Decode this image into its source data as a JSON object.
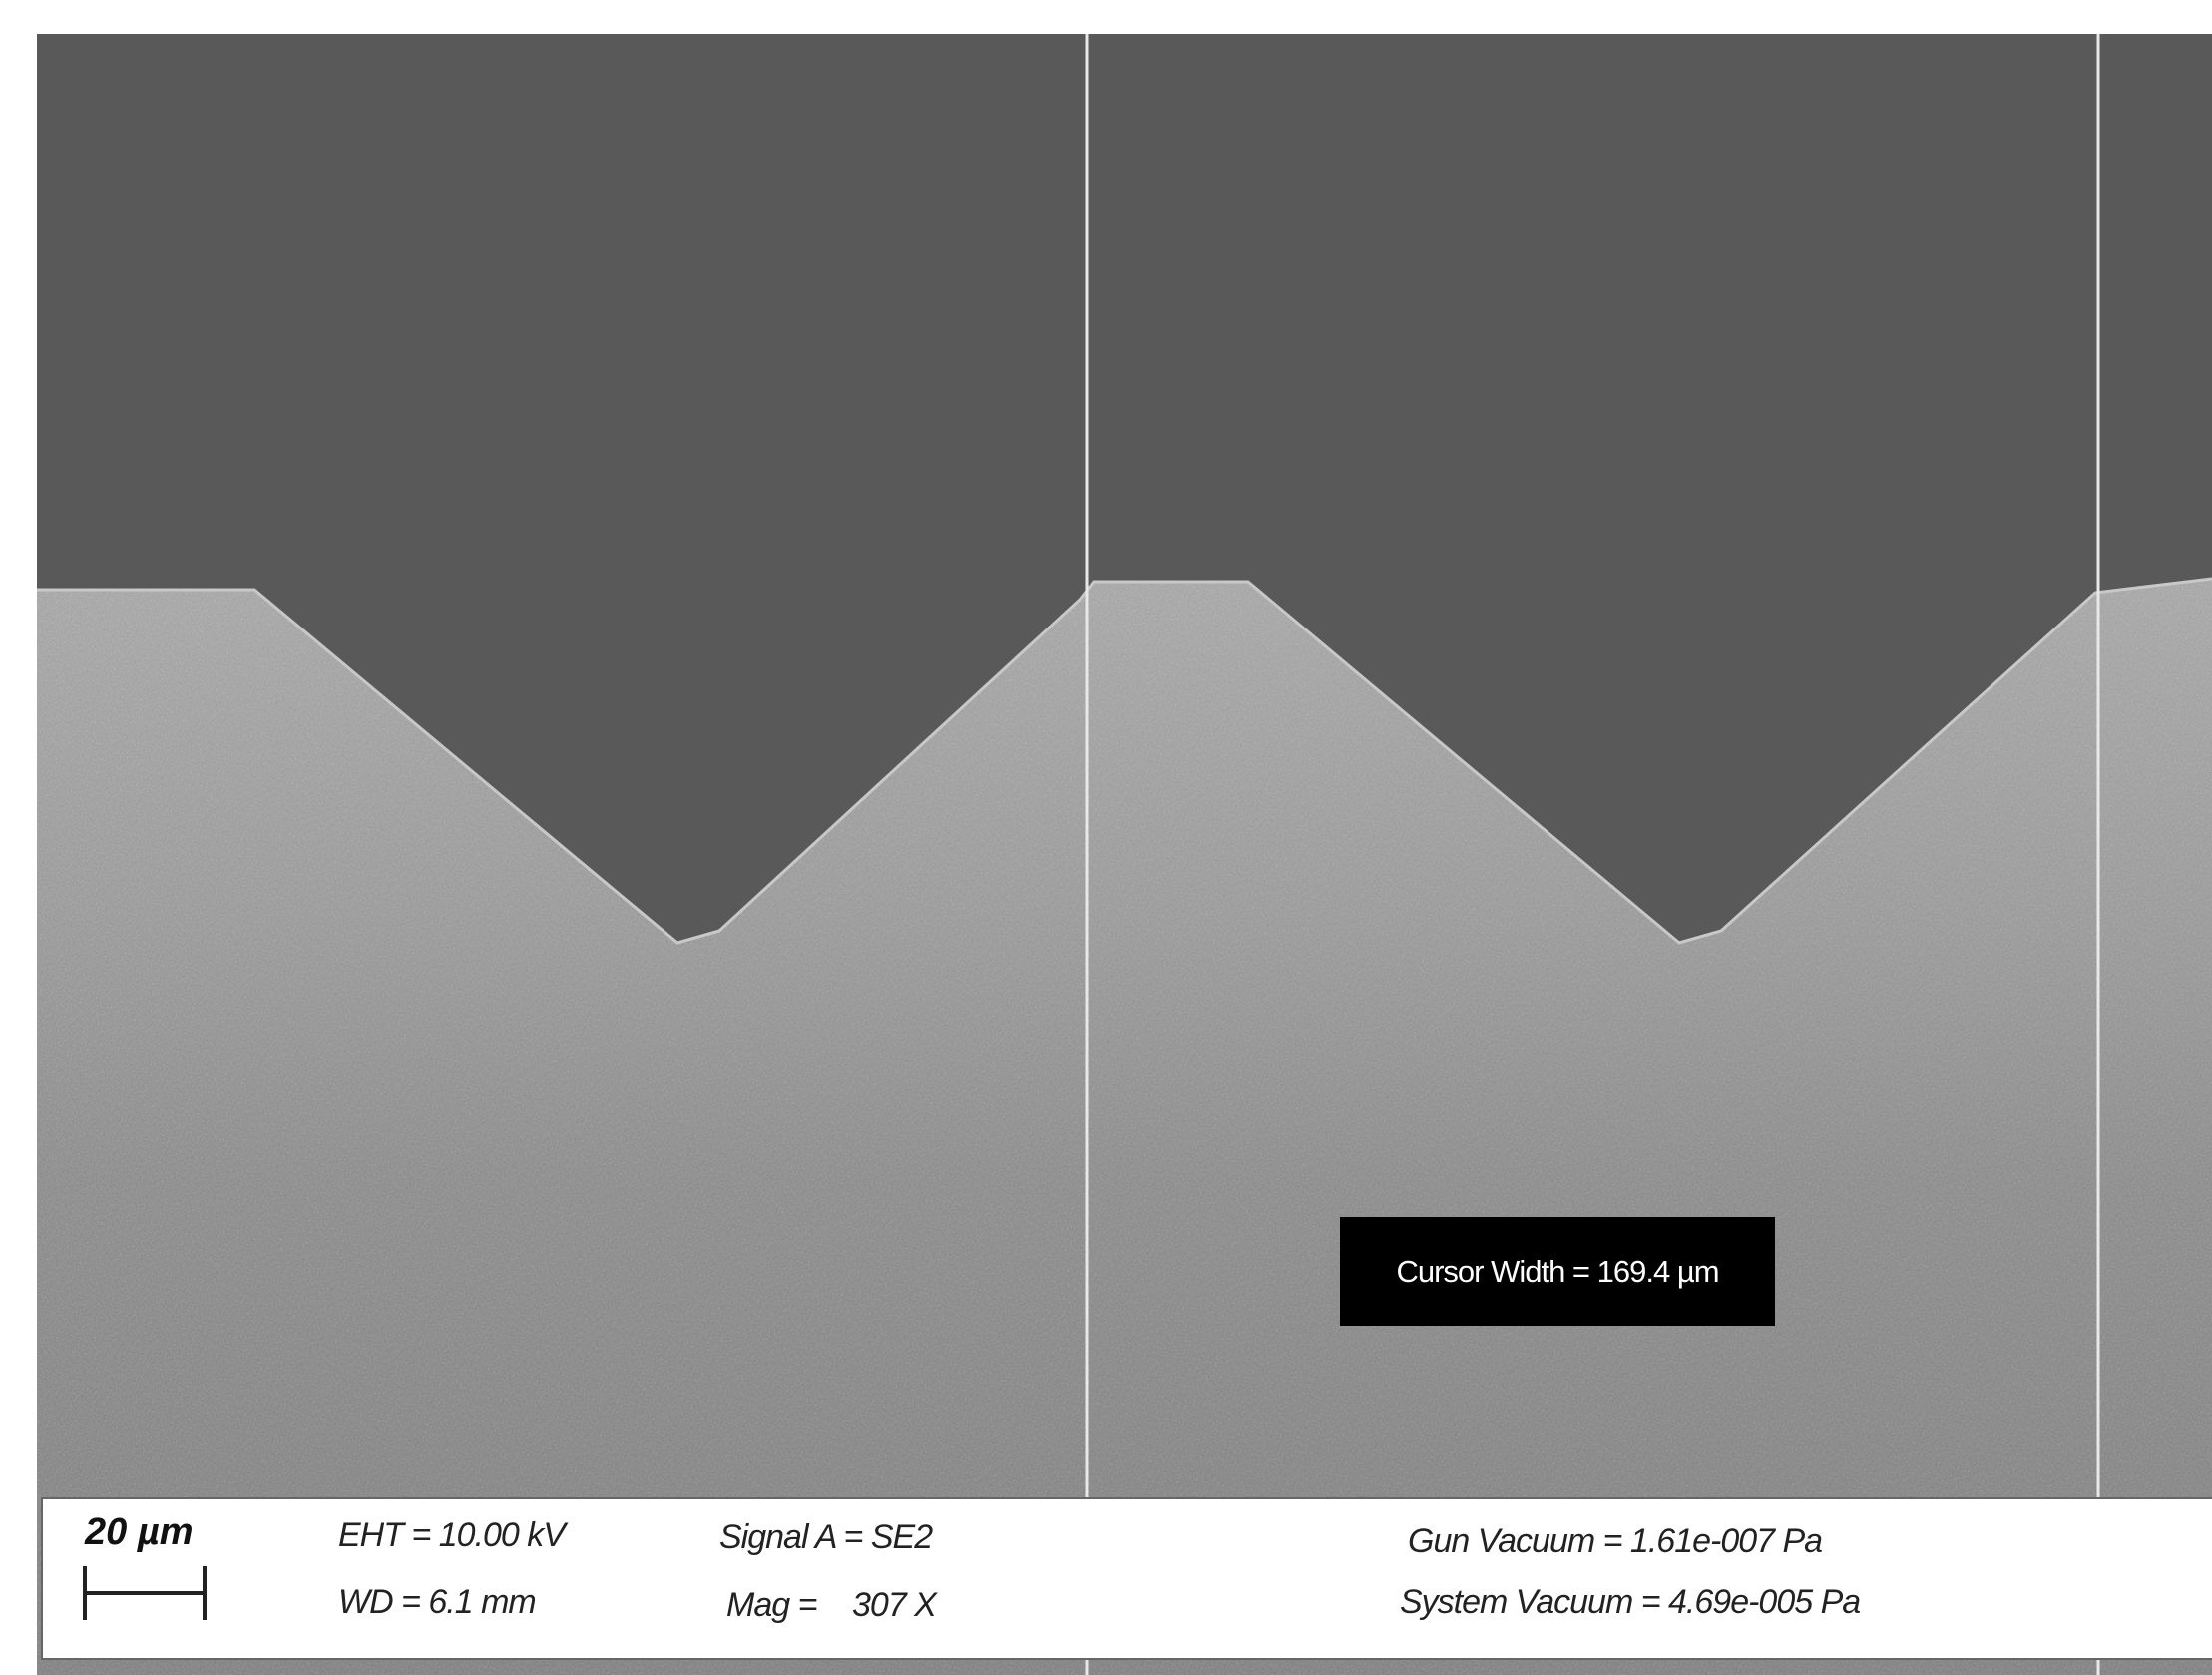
{
  "annotation": {
    "cursor_width": "Cursor Width = 169.4 µm"
  },
  "info_bar": {
    "scale_bar": "20 µm",
    "eht": "EHT = 10.00 kV",
    "wd": "WD = 6.1 mm",
    "signal": "Signal A = SE2",
    "mag_label": "Mag =",
    "mag_value": "307 X",
    "gun_vacuum": "Gun Vacuum = 1.61e-007 Pa",
    "system_vacuum": "System Vacuum = 4.69e-005 Pa"
  }
}
